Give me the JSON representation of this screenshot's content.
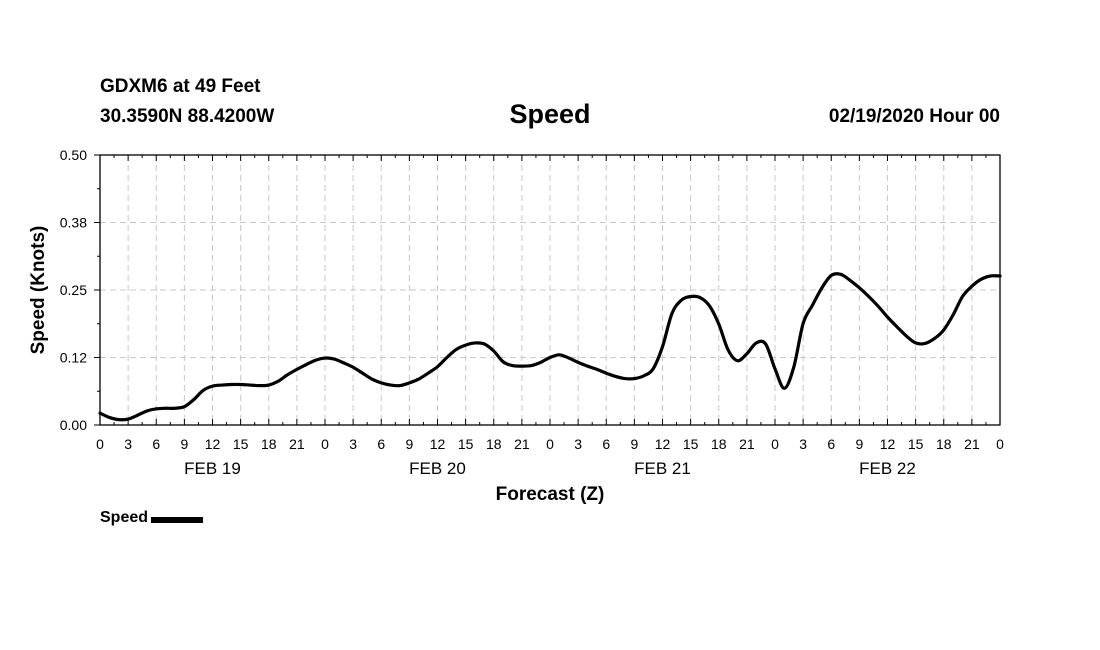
{
  "header": {
    "station": "GDXM6 at 49 Feet",
    "coords": "30.3590N 88.4200W",
    "title": "Speed",
    "forecast_time": "02/19/2020 Hour 00"
  },
  "legend": {
    "label": "Speed"
  },
  "colors": {
    "line": "#000000",
    "grid": "#c8c8c8",
    "axis": "#000000"
  },
  "chart_data": {
    "type": "line",
    "title": "Speed",
    "xlabel": "Forecast (Z)",
    "ylabel": "Speed (Knots)",
    "xlim": [
      0,
      96
    ],
    "ylim": [
      0.0,
      0.5
    ],
    "y_ticks": [
      "0.00",
      "0.12",
      "0.25",
      "0.38",
      "0.50"
    ],
    "x_tick_labels": [
      "0",
      "3",
      "6",
      "9",
      "12",
      "15",
      "18",
      "21",
      "0",
      "3",
      "6",
      "9",
      "12",
      "15",
      "18",
      "21",
      "0",
      "3",
      "6",
      "9",
      "12",
      "15",
      "18",
      "21",
      "0",
      "3",
      "6",
      "9",
      "12",
      "15",
      "18",
      "21",
      "0"
    ],
    "day_labels": [
      {
        "hour": 12,
        "label": "FEB 19"
      },
      {
        "hour": 36,
        "label": "FEB 20"
      },
      {
        "hour": 60,
        "label": "FEB 21"
      },
      {
        "hour": 84,
        "label": "FEB 22"
      }
    ],
    "grid": true,
    "series": [
      {
        "name": "Speed",
        "x": [
          0,
          1,
          2,
          3,
          4,
          5,
          6,
          7,
          8,
          9,
          10,
          11,
          12,
          13,
          14,
          15,
          16,
          17,
          18,
          19,
          20,
          21,
          22,
          23,
          24,
          25,
          26,
          27,
          28,
          29,
          30,
          31,
          32,
          33,
          34,
          35,
          36,
          37,
          38,
          39,
          40,
          41,
          42,
          43,
          44,
          45,
          46,
          47,
          48,
          49,
          50,
          51,
          52,
          53,
          54,
          55,
          56,
          57,
          58,
          59,
          60,
          61,
          62,
          63,
          64,
          65,
          66,
          67,
          68,
          69,
          70,
          71,
          72,
          73,
          74,
          75,
          76,
          77,
          78,
          79,
          80,
          81,
          82,
          83,
          84,
          85,
          86,
          87,
          88,
          89,
          90,
          91,
          92,
          93,
          94,
          95,
          96
        ],
        "values": [
          0.022,
          0.014,
          0.01,
          0.011,
          0.018,
          0.026,
          0.03,
          0.031,
          0.031,
          0.034,
          0.047,
          0.064,
          0.072,
          0.074,
          0.075,
          0.075,
          0.074,
          0.073,
          0.074,
          0.081,
          0.093,
          0.103,
          0.112,
          0.12,
          0.124,
          0.122,
          0.115,
          0.107,
          0.096,
          0.085,
          0.078,
          0.074,
          0.073,
          0.078,
          0.085,
          0.096,
          0.108,
          0.125,
          0.14,
          0.148,
          0.152,
          0.15,
          0.137,
          0.117,
          0.11,
          0.109,
          0.11,
          0.116,
          0.125,
          0.13,
          0.124,
          0.116,
          0.109,
          0.103,
          0.096,
          0.09,
          0.086,
          0.086,
          0.091,
          0.104,
          0.145,
          0.206,
          0.231,
          0.238,
          0.236,
          0.221,
          0.187,
          0.139,
          0.119,
          0.132,
          0.152,
          0.15,
          0.104,
          0.068,
          0.107,
          0.188,
          0.222,
          0.254,
          0.277,
          0.279,
          0.268,
          0.254,
          0.238,
          0.22,
          0.2,
          0.182,
          0.165,
          0.152,
          0.151,
          0.16,
          0.176,
          0.204,
          0.238,
          0.257,
          0.27,
          0.276,
          0.276
        ]
      }
    ]
  }
}
